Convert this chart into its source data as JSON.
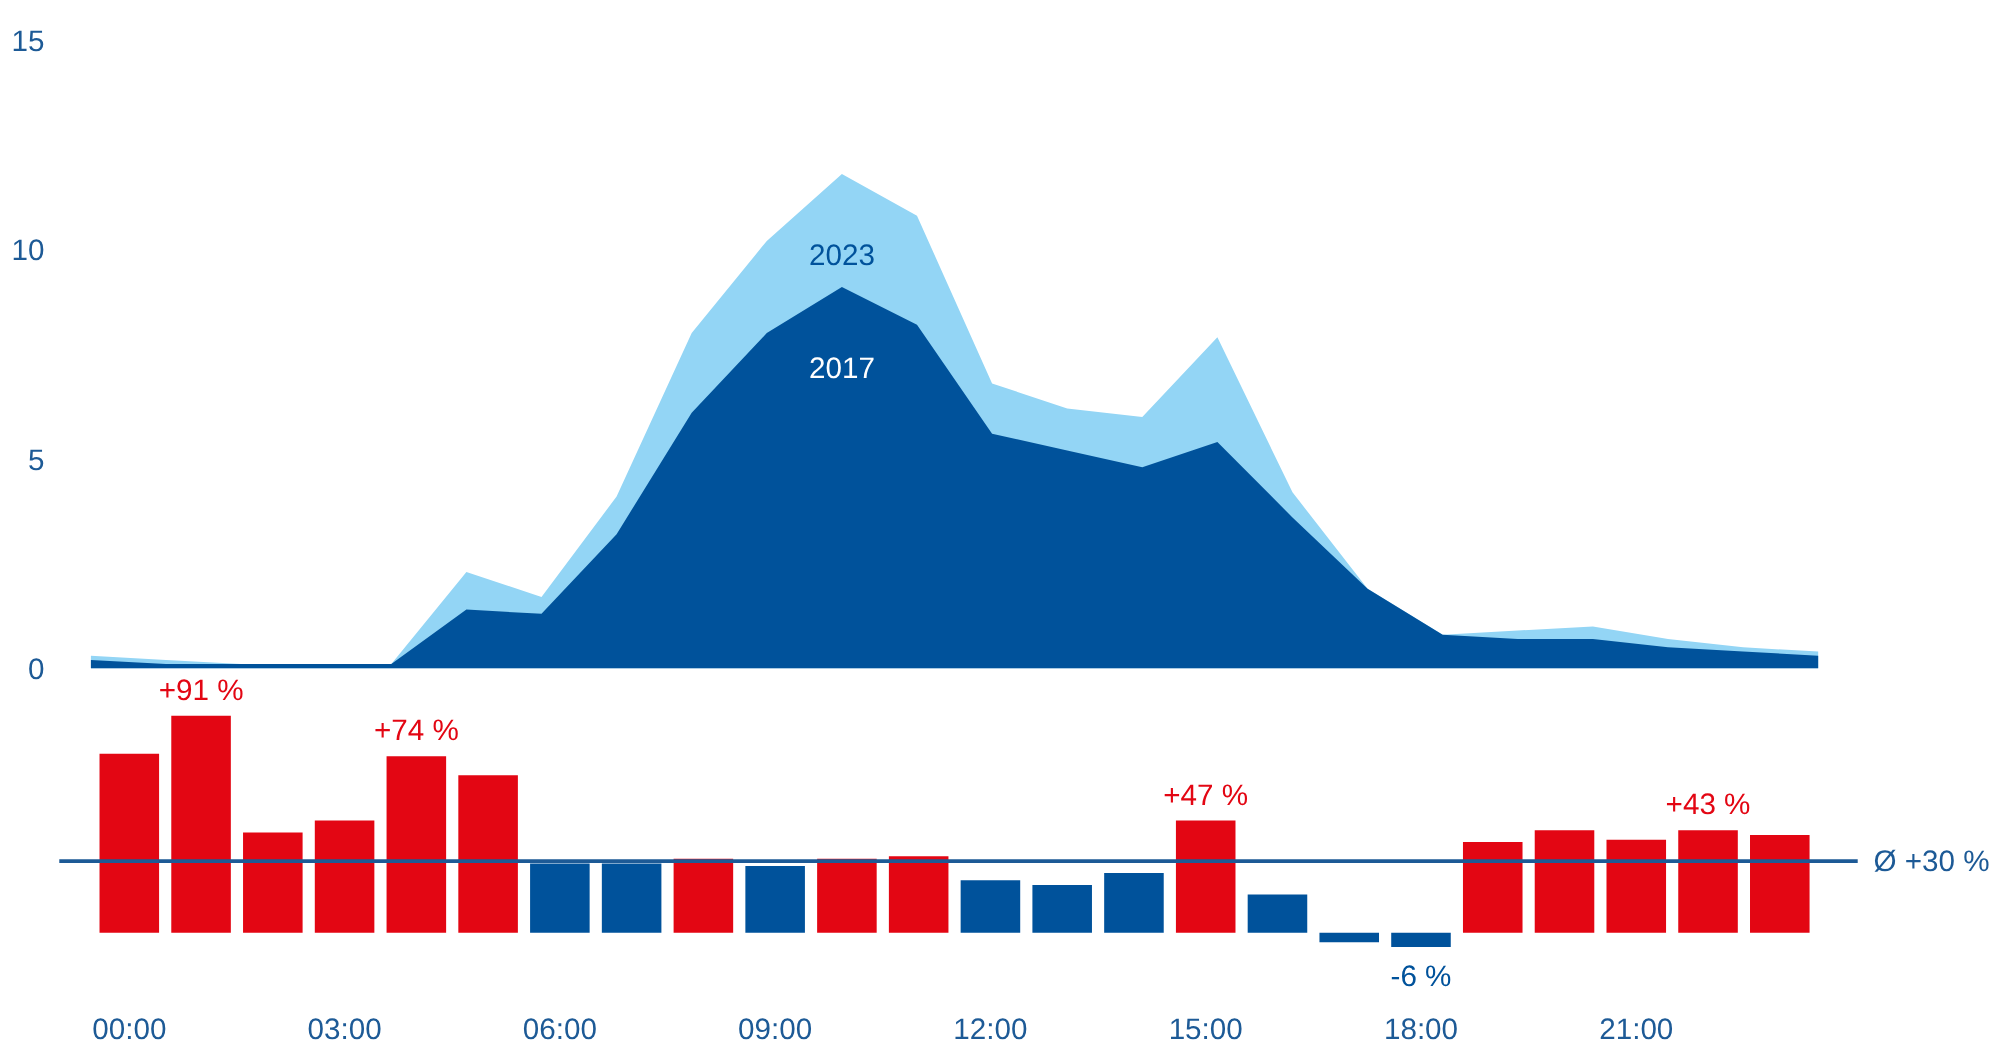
{
  "chart_data": [
    {
      "type": "area",
      "categories": [
        null,
        null,
        null,
        null,
        null,
        null,
        null,
        null,
        null,
        null,
        null,
        null,
        null,
        null,
        null,
        null,
        null,
        null,
        null,
        null,
        null,
        null,
        null,
        null
      ],
      "ylim": [
        0,
        15
      ],
      "yticks": [
        0,
        5,
        10,
        15
      ],
      "tick_labels": "y",
      "series": [
        {
          "name": "2023",
          "color": "#93d5f5",
          "values": [
            0.3,
            0.2,
            0.1,
            0.1,
            0.1,
            2.3,
            1.7,
            4.1,
            8.0,
            10.2,
            11.8,
            10.8,
            6.8,
            6.2,
            6.0,
            7.9,
            4.2,
            1.9,
            0.8,
            0.9,
            1.0,
            0.7,
            0.5,
            0.4
          ]
        },
        {
          "name": "2017",
          "color": "#00529b",
          "values": [
            0.2,
            0.1,
            0.1,
            0.1,
            0.1,
            1.4,
            1.3,
            3.2,
            6.1,
            8.0,
            9.1,
            8.2,
            5.6,
            5.2,
            4.8,
            5.4,
            3.6,
            1.9,
            0.8,
            0.7,
            0.7,
            0.5,
            0.4,
            0.3
          ]
        }
      ]
    },
    {
      "type": "bar",
      "categories": [
        "00:00",
        null,
        null,
        "03:00",
        null,
        null,
        "06:00",
        null,
        null,
        "09:00",
        null,
        null,
        "12:00",
        null,
        null,
        "15:00",
        null,
        null,
        "18:00",
        null,
        null,
        "21:00",
        null,
        null
      ],
      "values": [
        75,
        91,
        42,
        47,
        74,
        66,
        29,
        29,
        31,
        28,
        31,
        32,
        22,
        20,
        25,
        47,
        16,
        -4,
        -6,
        38,
        43,
        39,
        43,
        41
      ],
      "colors": [
        "#e30613",
        "#e30613",
        "#e30613",
        "#e30613",
        "#e30613",
        "#e30613",
        "#00529b",
        "#00529b",
        "#e30613",
        "#00529b",
        "#e30613",
        "#e30613",
        "#00529b",
        "#00529b",
        "#00529b",
        "#e30613",
        "#00529b",
        "#00529b",
        "#00529b",
        "#e30613",
        "#e30613",
        "#e30613",
        "#e30613",
        "#e30613"
      ],
      "value_labels": [
        null,
        "+91 %",
        null,
        null,
        "+74 %",
        null,
        null,
        null,
        null,
        null,
        null,
        null,
        null,
        null,
        null,
        "+47 %",
        null,
        null,
        "-6 %",
        null,
        null,
        null,
        "+43 %",
        null
      ],
      "ref_lines": [
        {
          "axis": "y",
          "value": 30,
          "label": "Ø +30 %",
          "color": "#1d5a96"
        }
      ],
      "tick_labels": "x"
    }
  ]
}
